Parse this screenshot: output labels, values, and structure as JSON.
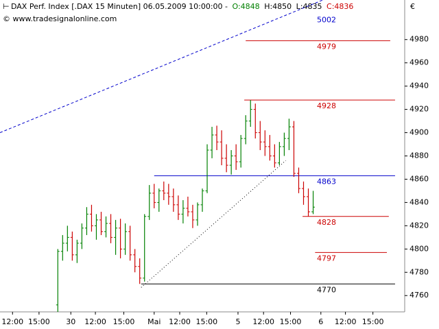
{
  "chart_data": {
    "type": "ohlc",
    "header": {
      "symbol": "DAX Perf. Index [.DAX  15 Minuten] 06.05.2009 10:00:00 -",
      "open": "O:4848",
      "high": "H:4850",
      "low": "L:4835",
      "close": "C:4836",
      "copyright": "© www.tradesignalonline.com"
    },
    "currency": "€",
    "up_color": "#008000",
    "down_color": "#cc0000",
    "x": [
      12,
      13,
      14,
      15,
      16,
      17,
      18,
      19,
      20,
      21,
      22,
      23,
      24,
      25,
      26,
      27,
      28,
      29,
      30,
      31,
      32,
      33,
      34,
      35,
      36,
      37,
      38,
      39,
      40,
      41,
      42,
      43,
      44,
      45,
      46,
      47,
      48,
      49,
      50,
      51,
      52,
      53,
      54,
      55,
      56,
      57,
      58,
      59,
      60,
      61,
      62,
      63,
      64,
      65
    ],
    "open": [
      4752,
      4798,
      4805,
      4810,
      4795,
      4805,
      4818,
      4830,
      4820,
      4825,
      4815,
      4822,
      4810,
      4818,
      4800,
      4815,
      4795,
      4785,
      4775,
      4828,
      4848,
      4840,
      4850,
      4848,
      4845,
      4838,
      4830,
      4835,
      4832,
      4825,
      4838,
      4850,
      4885,
      4898,
      4892,
      4878,
      4872,
      4880,
      4875,
      4895,
      4910,
      4920,
      4900,
      4892,
      4888,
      4880,
      4874,
      4888,
      4895,
      4905,
      4865,
      4852,
      4845,
      4832
    ],
    "high": [
      4800,
      4812,
      4820,
      4815,
      4808,
      4822,
      4836,
      4838,
      4830,
      4832,
      4828,
      4830,
      4825,
      4826,
      4822,
      4820,
      4800,
      4792,
      4830,
      4855,
      4856,
      4852,
      4858,
      4856,
      4852,
      4846,
      4842,
      4845,
      4838,
      4840,
      4852,
      4890,
      4905,
      4906,
      4902,
      4890,
      4885,
      4890,
      4898,
      4915,
      4928,
      4925,
      4910,
      4902,
      4898,
      4890,
      4892,
      4900,
      4912,
      4910,
      4870,
      4858,
      4852,
      4850
    ],
    "low": [
      4746,
      4790,
      4798,
      4790,
      4788,
      4800,
      4812,
      4815,
      4808,
      4812,
      4810,
      4805,
      4795,
      4792,
      4795,
      4790,
      4780,
      4770,
      4772,
      4825,
      4835,
      4832,
      4842,
      4838,
      4832,
      4825,
      4822,
      4828,
      4818,
      4820,
      4832,
      4848,
      4878,
      4885,
      4872,
      4866,
      4864,
      4868,
      4870,
      4890,
      4905,
      4895,
      4885,
      4880,
      4876,
      4870,
      4872,
      4880,
      4885,
      4862,
      4848,
      4838,
      4828,
      4830
    ],
    "close": [
      4798,
      4805,
      4810,
      4795,
      4805,
      4818,
      4830,
      4820,
      4825,
      4815,
      4822,
      4810,
      4818,
      4800,
      4815,
      4795,
      4785,
      4775,
      4828,
      4848,
      4840,
      4850,
      4848,
      4845,
      4838,
      4830,
      4835,
      4832,
      4825,
      4838,
      4850,
      4885,
      4898,
      4892,
      4878,
      4872,
      4880,
      4875,
      4895,
      4910,
      4920,
      4900,
      4892,
      4888,
      4880,
      4874,
      4888,
      4895,
      4905,
      4865,
      4852,
      4845,
      4832,
      4836
    ],
    "xlim": [
      0,
      84
    ],
    "ylim": [
      4746,
      5014
    ],
    "yticks": [
      4760,
      4780,
      4800,
      4820,
      4840,
      4860,
      4880,
      4900,
      4920,
      4940,
      4960,
      4980
    ],
    "xticks": [
      {
        "value": 2.6,
        "label": "12:00"
      },
      {
        "value": 8.1,
        "label": "15:00"
      },
      {
        "value": 14.7,
        "label": "30"
      },
      {
        "value": 19.8,
        "label": "12:00"
      },
      {
        "value": 25.7,
        "label": "15:00"
      },
      {
        "value": 32,
        "label": "Mai"
      },
      {
        "value": 37.3,
        "label": "12:00"
      },
      {
        "value": 42.9,
        "label": "15:00"
      },
      {
        "value": 49.4,
        "label": "5"
      },
      {
        "value": 54.7,
        "label": "12:00"
      },
      {
        "value": 60.3,
        "label": "15:00"
      },
      {
        "value": 66.6,
        "label": "6"
      },
      {
        "value": 71.7,
        "label": "12:00"
      },
      {
        "value": 77.4,
        "label": "15:00"
      }
    ],
    "levels": [
      {
        "value": 5002,
        "color": "#0000cc"
      },
      {
        "value": 4979,
        "color": "#cc0000",
        "from": 51,
        "to": 81
      },
      {
        "value": 4928,
        "color": "#cc0000",
        "from": 50.7,
        "to": 82
      },
      {
        "value": 4863,
        "color": "#0000cc",
        "from": 32,
        "to": 82
      },
      {
        "value": 4828,
        "color": "#cc0000",
        "from": 62.8,
        "to": 80.7
      },
      {
        "value": 4797,
        "color": "#cc0000",
        "from": 65.4,
        "to": 80.3
      },
      {
        "value": 4770,
        "color": "#000000",
        "from": 29.3,
        "to": 82
      }
    ],
    "trendlines": [
      {
        "x": [
          0,
          67
        ],
        "y": [
          4900,
          5014
        ],
        "color": "#0000cc",
        "style": "dashed"
      },
      {
        "x": [
          29.3,
          59.3
        ],
        "y": [
          4767,
          4876
        ],
        "color": "#000000",
        "style": "dotted"
      }
    ]
  }
}
